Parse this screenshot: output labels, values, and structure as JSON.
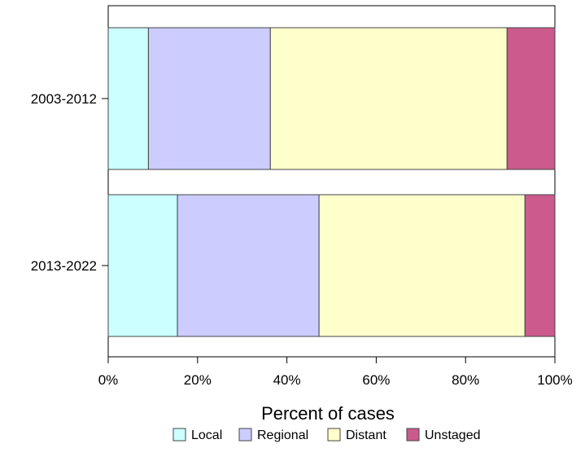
{
  "chart_data": {
    "type": "bar",
    "orientation": "horizontal",
    "stacked": true,
    "title": "",
    "xlabel": "Percent of cases",
    "ylabel": "",
    "xlim": [
      0,
      100
    ],
    "x_ticks": [
      "0%",
      "20%",
      "40%",
      "60%",
      "80%",
      "100%"
    ],
    "x_tick_values": [
      0,
      20,
      40,
      60,
      80,
      100
    ],
    "categories": [
      "2003-2012",
      "2013-2022"
    ],
    "series": [
      {
        "name": "Local",
        "color": "#ccffff",
        "values": [
          9.0,
          15.5
        ]
      },
      {
        "name": "Regional",
        "color": "#ccccff",
        "values": [
          27.3,
          31.7
        ]
      },
      {
        "name": "Distant",
        "color": "#ffffcc",
        "values": [
          53.0,
          46.1
        ]
      },
      {
        "name": "Unstaged",
        "color": "#cc5a8c",
        "values": [
          10.7,
          6.7
        ]
      }
    ],
    "grid": false,
    "legend_position": "bottom"
  }
}
